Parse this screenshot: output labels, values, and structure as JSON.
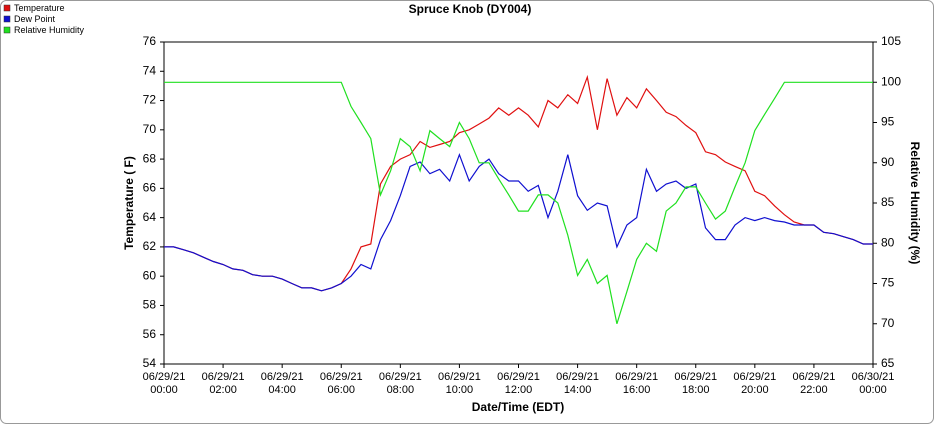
{
  "chart_data": {
    "type": "line",
    "title": "Spruce Knob (DY004)",
    "x_label": "Date/Time (EDT)",
    "y_label": "Temperature ( F)",
    "y2_label": "Relative Humidity (%)",
    "x": [
      0,
      0.33,
      0.67,
      1,
      1.33,
      1.67,
      2,
      2.33,
      2.67,
      3,
      3.33,
      3.67,
      4,
      4.33,
      4.67,
      5,
      5.33,
      5.67,
      6,
      6.33,
      6.67,
      7,
      7.33,
      7.67,
      8,
      8.33,
      8.67,
      9,
      9.33,
      9.67,
      10,
      10.33,
      10.67,
      11,
      11.33,
      11.67,
      12,
      12.33,
      12.67,
      13,
      13.33,
      13.67,
      14,
      14.33,
      14.67,
      15,
      15.33,
      15.67,
      16,
      16.33,
      16.67,
      17,
      17.33,
      17.67,
      18,
      18.33,
      18.67,
      19,
      19.33,
      19.67,
      20,
      20.33,
      20.67,
      21,
      21.33,
      21.67,
      22,
      22.33,
      22.67,
      23,
      23.33,
      23.67,
      24
    ],
    "xlim": [
      0,
      24
    ],
    "xticks": [
      {
        "value": 0,
        "label": "06/29/21 00:00"
      },
      {
        "value": 2,
        "label": "06/29/21 02:00"
      },
      {
        "value": 4,
        "label": "06/29/21 04:00"
      },
      {
        "value": 6,
        "label": "06/29/21 06:00"
      },
      {
        "value": 8,
        "label": "06/29/21 08:00"
      },
      {
        "value": 10,
        "label": "06/29/21 10:00"
      },
      {
        "value": 12,
        "label": "06/29/21 12:00"
      },
      {
        "value": 14,
        "label": "06/29/21 14:00"
      },
      {
        "value": 16,
        "label": "06/29/21 16:00"
      },
      {
        "value": 18,
        "label": "06/29/21 18:00"
      },
      {
        "value": 20,
        "label": "06/29/21 20:00"
      },
      {
        "value": 22,
        "label": "06/29/21 22:00"
      },
      {
        "value": 24,
        "label": "06/30/21 00:00"
      }
    ],
    "ylim": [
      54,
      76
    ],
    "yticks": [
      54,
      56,
      58,
      60,
      62,
      64,
      66,
      68,
      70,
      72,
      74,
      76
    ],
    "y2lim": [
      65,
      105
    ],
    "y2ticks": [
      65,
      70,
      75,
      80,
      85,
      90,
      95,
      100,
      105
    ],
    "grid": false,
    "legend": "top-left",
    "series": [
      {
        "name": "Temperature",
        "color": "#e01010",
        "values": [
          62.0,
          62.0,
          61.8,
          61.6,
          61.3,
          61.0,
          60.8,
          60.5,
          60.4,
          60.1,
          60.0,
          60.0,
          59.8,
          59.5,
          59.2,
          59.2,
          59.0,
          59.2,
          59.5,
          60.5,
          62.0,
          62.2,
          66.3,
          67.5,
          68.0,
          68.3,
          69.2,
          68.8,
          69.0,
          69.2,
          69.8,
          70.0,
          70.4,
          70.8,
          71.5,
          71.0,
          71.5,
          71.0,
          70.2,
          72.0,
          71.5,
          72.4,
          71.8,
          73.6,
          70.0,
          73.5,
          71.0,
          72.2,
          71.5,
          72.8,
          72.0,
          71.2,
          70.9,
          70.3,
          69.8,
          68.5,
          68.3,
          67.8,
          67.5,
          67.2,
          65.8,
          65.5,
          64.8,
          64.2,
          63.7,
          63.5,
          63.5,
          63.0,
          62.9,
          62.7,
          62.5,
          62.2,
          62.2
        ]
      },
      {
        "name": "Dew Point",
        "color": "#1010d0",
        "values": [
          62.0,
          62.0,
          61.8,
          61.6,
          61.3,
          61.0,
          60.8,
          60.5,
          60.4,
          60.1,
          60.0,
          60.0,
          59.8,
          59.5,
          59.2,
          59.2,
          59.0,
          59.2,
          59.5,
          60.0,
          60.8,
          60.5,
          62.5,
          63.8,
          65.5,
          67.5,
          67.8,
          67.0,
          67.3,
          66.5,
          68.3,
          66.5,
          67.5,
          68.0,
          67.0,
          66.5,
          66.5,
          65.8,
          66.2,
          64.0,
          65.8,
          68.3,
          65.5,
          64.5,
          65.0,
          64.8,
          62.0,
          63.5,
          64.0,
          67.3,
          65.8,
          66.3,
          66.5,
          66.0,
          66.3,
          63.3,
          62.5,
          62.5,
          63.5,
          64.0,
          63.8,
          64.0,
          63.8,
          63.7,
          63.5,
          63.5,
          63.5,
          63.0,
          62.9,
          62.7,
          62.5,
          62.2,
          62.2
        ]
      },
      {
        "name": "Relative Humidity",
        "color": "#20e020",
        "axis": "y2",
        "values": [
          100,
          100,
          100,
          100,
          100,
          100,
          100,
          100,
          100,
          100,
          100,
          100,
          100,
          100,
          100,
          100,
          100,
          100,
          100,
          97,
          95,
          93,
          86,
          89,
          93,
          92,
          89,
          94,
          93,
          92,
          95,
          93,
          90,
          90,
          88,
          86,
          84,
          84,
          86,
          86,
          85,
          81,
          76,
          78,
          75,
          76,
          70,
          74,
          78,
          80,
          79,
          84,
          85,
          87,
          87,
          85,
          83,
          84,
          87,
          90,
          94,
          96,
          98,
          100,
          100,
          100,
          100,
          100,
          100,
          100,
          100,
          100,
          100
        ]
      }
    ]
  }
}
